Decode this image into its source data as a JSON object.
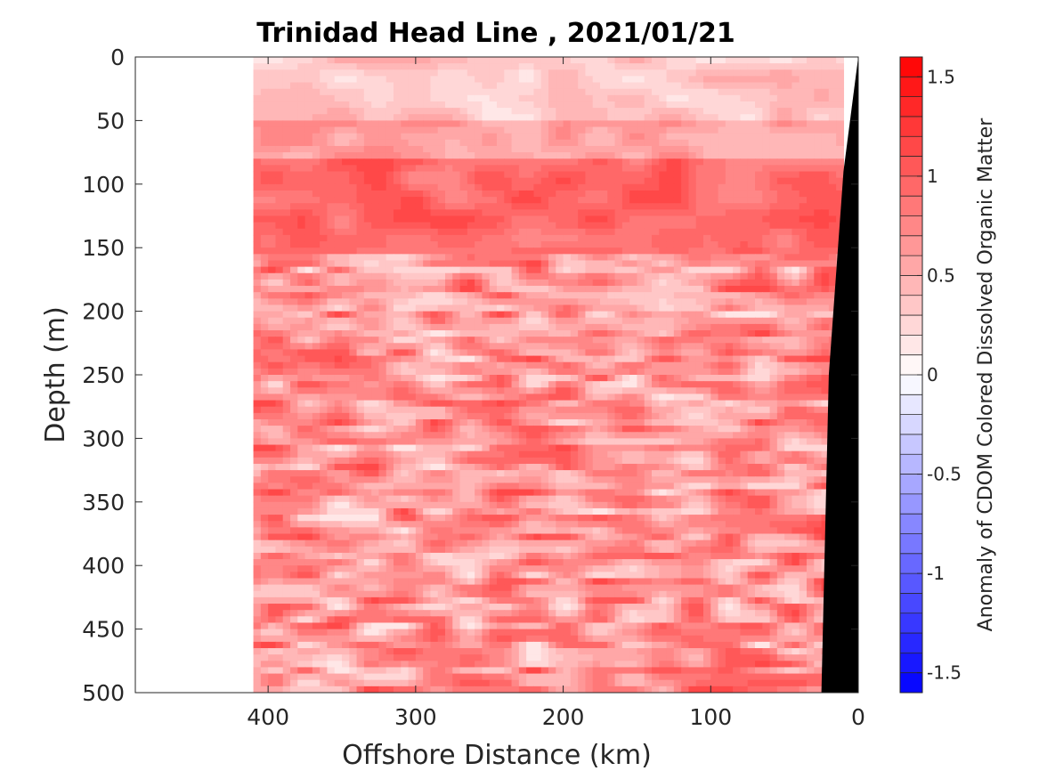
{
  "chart_data": {
    "type": "heatmap",
    "title": "Trinidad Head Line , 2021/01/21",
    "xlabel": "Offshore Distance (km)",
    "ylabel": "Depth (m)",
    "xlim": [
      490,
      0
    ],
    "ylim": [
      500,
      0
    ],
    "x_reversed": true,
    "y_reversed": true,
    "x_ticks": [
      400,
      300,
      200,
      100,
      0
    ],
    "y_ticks": [
      0,
      50,
      100,
      150,
      200,
      250,
      300,
      350,
      400,
      450,
      500
    ],
    "data_x_range": [
      410,
      10
    ],
    "colorbar": {
      "label": "Anomaly of CDOM Colored Dissolved Organic Matter",
      "range": [
        -1.6,
        1.6
      ],
      "step": 0.1,
      "ticks": [
        1.5,
        1,
        0.5,
        0,
        -0.5,
        -1,
        -1.5
      ],
      "tick_labels": [
        "1.5",
        "1",
        "0.5",
        "0",
        "-0.5",
        "-1",
        "-1.5"
      ],
      "colormap": "blue-white-red"
    },
    "depth_profile": [
      {
        "depth_range": [
          0,
          50
        ],
        "anomaly": 0.35
      },
      {
        "depth_range": [
          50,
          80
        ],
        "anomaly": 0.6
      },
      {
        "depth_range": [
          80,
          155
        ],
        "anomaly": 0.95
      },
      {
        "depth_range": [
          155,
          500
        ],
        "anomaly": 0.65
      }
    ],
    "bathymetry": [
      {
        "x": 0,
        "depth": 0
      },
      {
        "x": 10,
        "depth": 90
      },
      {
        "x": 20,
        "depth": 250
      },
      {
        "x": 25,
        "depth": 500
      }
    ],
    "bathymetry_color": "#000000"
  }
}
